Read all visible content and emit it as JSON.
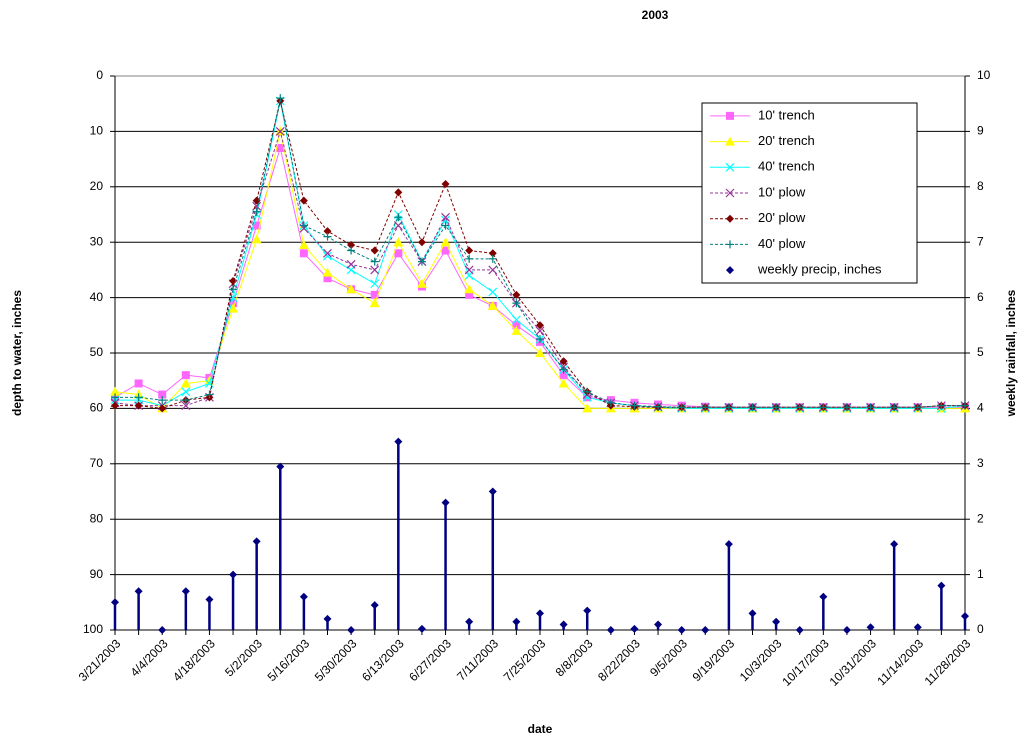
{
  "chart_data": {
    "type": "line",
    "title": "2003",
    "x_label": "date",
    "y_label": "depth to water, inches",
    "y2_label": "weekly rainfall, inches",
    "categories": [
      "3/21/2003",
      null,
      "4/4/2003",
      null,
      "4/18/2003",
      null,
      "5/2/2003",
      null,
      "5/16/2003",
      null,
      "5/30/2003",
      null,
      "6/13/2003",
      null,
      "6/27/2003",
      null,
      "7/11/2003",
      null,
      "7/25/2003",
      null,
      "8/8/2003",
      null,
      "8/22/2003",
      null,
      "9/5/2003",
      null,
      "9/19/2003",
      null,
      "10/3/2003",
      null,
      "10/17/2003",
      null,
      "10/31/2003",
      null,
      "11/14/2003",
      null,
      "11/28/2003"
    ],
    "ylim": [
      100,
      0
    ],
    "yticks": [
      0,
      10,
      20,
      30,
      40,
      50,
      60,
      70,
      80,
      90,
      100
    ],
    "y2lim": [
      0,
      10
    ],
    "y2ticks": [
      0,
      1,
      2,
      3,
      4,
      5,
      6,
      7,
      8,
      9,
      10
    ],
    "grid": true,
    "legend": "upper right",
    "series": [
      {
        "name": "10' trench",
        "color": "#ff66ff",
        "marker": "square",
        "dashed": false,
        "values": [
          58,
          55.5,
          57.5,
          54,
          54.5,
          41,
          27,
          13,
          32,
          36.5,
          38.5,
          39.5,
          32,
          38,
          31.5,
          39.5,
          41.5,
          45,
          48,
          54,
          58,
          58.5,
          59,
          59.3,
          59.5,
          59.7,
          59.8,
          59.8,
          59.8,
          59.8,
          59.8,
          59.8,
          59.8,
          59.8,
          59.8,
          59.8,
          59.8
        ]
      },
      {
        "name": "20' trench",
        "color": "#ffff00",
        "marker": "triangle",
        "dashed": false,
        "values": [
          57,
          57.5,
          60,
          55.5,
          55,
          42,
          29.5,
          10,
          30.5,
          35.5,
          38.5,
          41,
          30,
          37.5,
          30,
          38.5,
          41.5,
          46,
          50,
          55.5,
          60,
          60,
          60,
          60,
          60,
          60,
          60,
          60,
          60,
          60,
          60,
          60,
          60,
          60,
          60,
          60,
          60
        ]
      },
      {
        "name": "40' trench",
        "color": "#00ffff",
        "marker": "x",
        "dashed": false,
        "values": [
          58.5,
          58.5,
          59.5,
          57,
          55.5,
          40,
          25,
          4.5,
          27,
          32.5,
          35,
          37.5,
          25,
          33.5,
          26,
          36,
          39,
          44,
          47.5,
          53,
          58,
          59,
          59.5,
          59.8,
          60,
          60,
          60,
          60,
          60,
          60,
          60,
          60,
          60,
          60,
          60,
          60,
          59.5
        ]
      },
      {
        "name": "10' plow",
        "color": "#993399",
        "marker": "x",
        "dashed": true,
        "values": [
          59,
          59.5,
          59.5,
          59.5,
          58,
          37.5,
          23.5,
          10,
          27.5,
          32,
          34,
          35,
          27,
          33.5,
          25.5,
          35,
          35,
          41,
          46,
          52.5,
          57.5,
          59,
          59.5,
          59.7,
          59.8,
          59.8,
          59.8,
          59.8,
          59.8,
          59.8,
          59.8,
          59.8,
          59.8,
          59.8,
          59.8,
          59.5,
          59.5
        ]
      },
      {
        "name": "20' plow",
        "color": "#800000",
        "marker": "diamond",
        "dashed": true,
        "values": [
          59.5,
          59.5,
          60,
          58.5,
          58,
          37,
          22.5,
          4.5,
          22.5,
          28,
          30.5,
          31.5,
          21,
          30,
          19.5,
          31.5,
          32,
          39.5,
          45,
          51.5,
          57,
          59.5,
          59.7,
          59.8,
          59.8,
          59.8,
          59.8,
          59.8,
          59.8,
          59.8,
          59.8,
          59.8,
          59.8,
          59.8,
          59.8,
          59.5,
          59.5
        ]
      },
      {
        "name": "40' plow",
        "color": "#008080",
        "marker": "plus",
        "dashed": true,
        "values": [
          58,
          58,
          58.5,
          58.5,
          57.5,
          38.5,
          24.5,
          4,
          27,
          29,
          31.5,
          33.5,
          25.5,
          33.5,
          27,
          33,
          33,
          41,
          47.5,
          53,
          57,
          59,
          59.5,
          59.7,
          59.8,
          59.8,
          59.8,
          59.8,
          59.8,
          59.8,
          59.8,
          59.8,
          59.8,
          59.8,
          59.8,
          59.5,
          59.5
        ]
      },
      {
        "name": "weekly precip, inches",
        "color": "#000080",
        "marker": "diamond",
        "axis": "y2",
        "drop_lines": true,
        "values": [
          0.5,
          0.7,
          0,
          0.7,
          0.55,
          1.0,
          1.6,
          2.95,
          0.6,
          0.2,
          0,
          0.45,
          3.4,
          0.02,
          2.3,
          0.15,
          2.5,
          0.15,
          0.3,
          0.1,
          0.35,
          0,
          0.02,
          0.1,
          0,
          0,
          1.55,
          0.3,
          0.15,
          0,
          0.6,
          0,
          0.05,
          1.55,
          0.05,
          0.8,
          0.25
        ]
      }
    ]
  }
}
